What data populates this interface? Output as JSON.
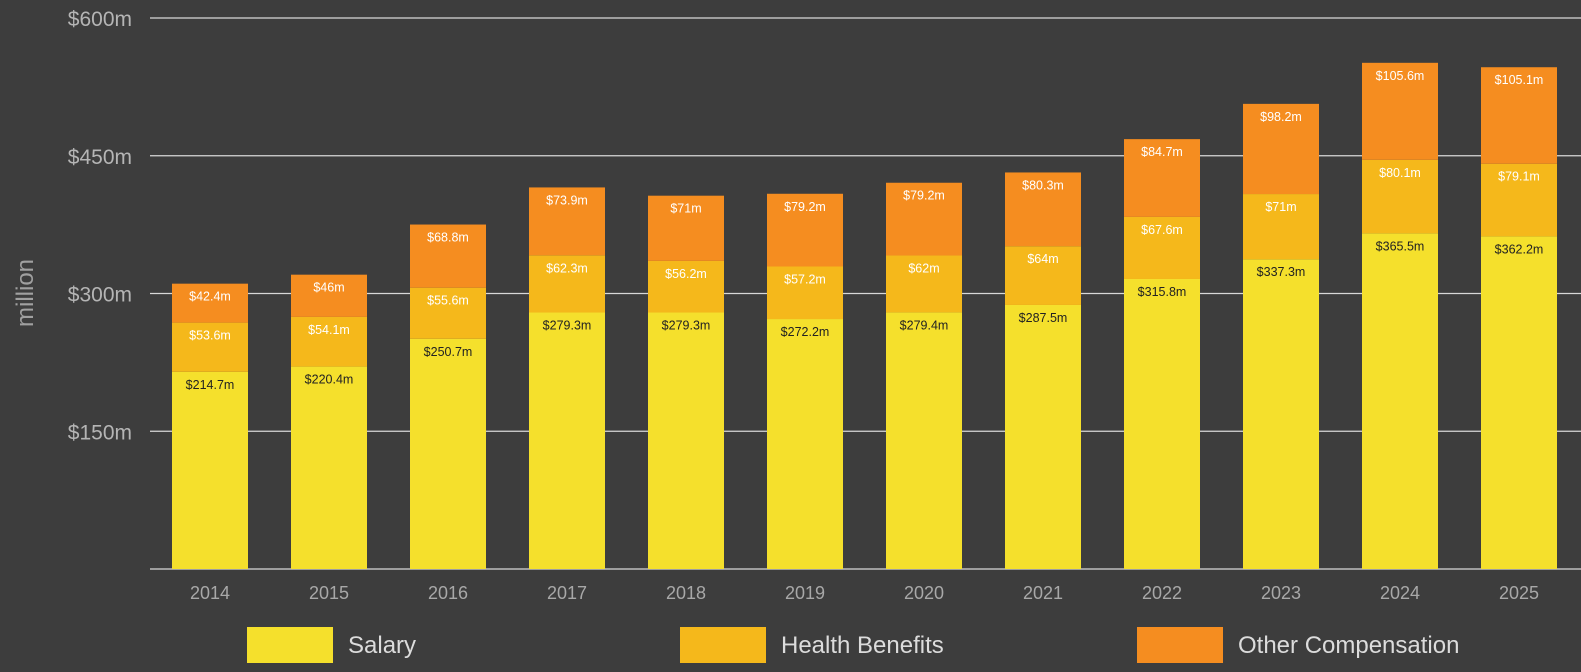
{
  "chart_data": {
    "type": "bar",
    "stacked": true,
    "ylabel": "million",
    "ylim": [
      0,
      600
    ],
    "yticks": [
      {
        "value": 150,
        "label": "$150m"
      },
      {
        "value": 300,
        "label": "$300m"
      },
      {
        "value": 450,
        "label": "$450m"
      },
      {
        "value": 600,
        "label": "$600m"
      }
    ],
    "grid": true,
    "legend_position": "bottom",
    "categories": [
      "2014",
      "2015",
      "2016",
      "2017",
      "2018",
      "2019",
      "2020",
      "2021",
      "2022",
      "2023",
      "2024",
      "2025"
    ],
    "series": [
      {
        "name": "Salary",
        "color": "#f5e02c",
        "values": [
          214.7,
          220.4,
          250.7,
          279.3,
          279.3,
          272.2,
          279.4,
          287.5,
          315.8,
          337.3,
          365.5,
          362.2
        ],
        "labels": [
          "$214.7m",
          "$220.4m",
          "$250.7m",
          "$279.3m",
          "$279.3m",
          "$272.2m",
          "$279.4m",
          "$287.5m",
          "$315.8m",
          "$337.3m",
          "$365.5m",
          "$362.2m"
        ]
      },
      {
        "name": "Health Benefits",
        "color": "#f5b81b",
        "values": [
          53.6,
          54.1,
          55.6,
          62.3,
          56.2,
          57.2,
          62,
          64,
          67.6,
          71,
          80.1,
          79.1
        ],
        "labels": [
          "$53.6m",
          "$54.1m",
          "$55.6m",
          "$62.3m",
          "$56.2m",
          "$57.2m",
          "$62m",
          "$64m",
          "$67.6m",
          "$71m",
          "$80.1m",
          "$79.1m"
        ]
      },
      {
        "name": "Other Compensation",
        "color": "#f58d20",
        "values": [
          42.4,
          46,
          68.8,
          73.9,
          71,
          79.2,
          79.2,
          80.3,
          84.7,
          98.2,
          105.6,
          105.1
        ],
        "labels": [
          "$42.4m",
          "$46m",
          "$68.8m",
          "$73.9m",
          "$71m",
          "$79.2m",
          "$79.2m",
          "$80.3m",
          "$84.7m",
          "$98.2m",
          "$105.6m",
          "$105.1m"
        ]
      }
    ]
  }
}
